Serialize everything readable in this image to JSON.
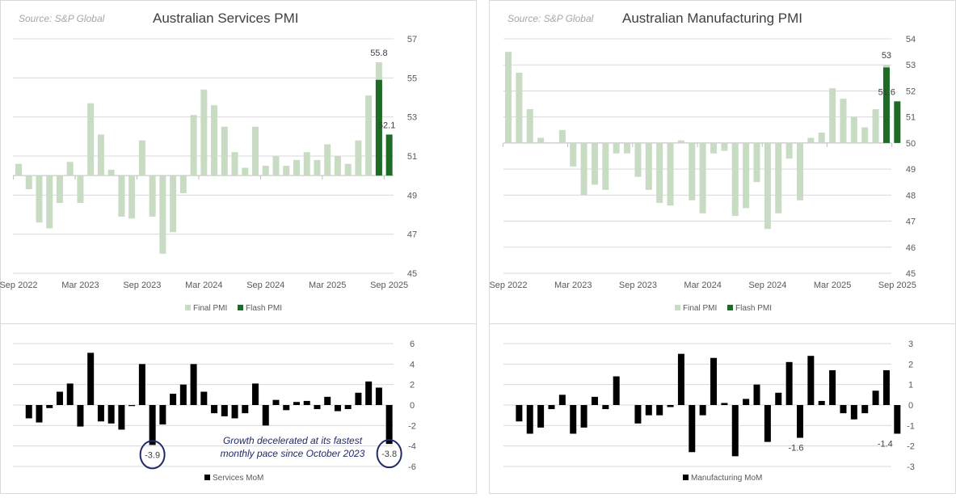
{
  "colors": {
    "final": "#c8dcc4",
    "flash": "#1e6b26",
    "mom": "#000000",
    "annotation": "#1f2a6b"
  },
  "chart_data": [
    {
      "id": "services-pmi",
      "type": "bar",
      "source": "Source: S&P Global",
      "title": "Australian Services PMI",
      "categories_ticks": [
        "Sep 2022",
        "Mar 2023",
        "Sep 2023",
        "Mar 2024",
        "Sep 2024",
        "Mar 2025",
        "Sep 2025"
      ],
      "months_start": "Sep 2022",
      "baseline": 50,
      "ylim": [
        45,
        57
      ],
      "yticks": [
        45,
        47,
        49,
        51,
        53,
        55,
        57
      ],
      "series": [
        {
          "name": "Final PMI",
          "values": [
            50.6,
            49.3,
            47.6,
            47.3,
            48.6,
            50.7,
            48.6,
            53.7,
            52.1,
            50.3,
            47.9,
            47.8,
            51.8,
            47.9,
            46.0,
            47.1,
            49.1,
            53.1,
            54.4,
            53.6,
            52.5,
            51.2,
            50.4,
            52.5,
            50.5,
            51.0,
            50.5,
            50.8,
            51.2,
            50.8,
            51.6,
            51.0,
            50.6,
            51.8,
            54.1,
            55.8,
            null
          ]
        },
        {
          "name": "Flash PMI",
          "values": [
            null,
            null,
            null,
            null,
            null,
            null,
            null,
            null,
            null,
            null,
            null,
            null,
            null,
            null,
            null,
            null,
            null,
            null,
            null,
            null,
            null,
            null,
            null,
            null,
            null,
            null,
            null,
            null,
            null,
            null,
            null,
            null,
            null,
            null,
            null,
            54.9,
            52.1
          ]
        }
      ],
      "data_labels": [
        {
          "index": 35,
          "series": "Final PMI",
          "text": "55.8"
        },
        {
          "index": 36,
          "series": "Flash PMI",
          "text": "52.1"
        }
      ],
      "legend": [
        "Final PMI",
        "Flash PMI"
      ],
      "legend_position": "bottom"
    },
    {
      "id": "services-mom",
      "type": "bar",
      "ylim": [
        -6,
        6
      ],
      "yticks": [
        -6,
        -4,
        -2,
        0,
        2,
        4,
        6
      ],
      "months_start": "Oct 2022",
      "series": [
        {
          "name": "Services MoM",
          "values": [
            -1.3,
            -1.7,
            -0.3,
            1.3,
            2.1,
            -2.1,
            5.1,
            -1.6,
            -1.8,
            -2.4,
            -0.1,
            4.0,
            -3.9,
            -1.9,
            1.1,
            2.0,
            4.0,
            1.3,
            -0.8,
            -1.1,
            -1.3,
            -0.8,
            2.1,
            -2.0,
            0.5,
            -0.5,
            0.3,
            0.4,
            -0.4,
            0.8,
            -0.6,
            -0.4,
            1.2,
            2.3,
            1.7,
            -3.8
          ]
        }
      ],
      "data_labels": [
        {
          "index": 12,
          "text": "-3.9",
          "circled": true
        },
        {
          "index": 35,
          "text": "-3.8",
          "circled": true
        }
      ],
      "annotation": [
        "Growth decelerated at its fastest",
        "monthly pace since October 2023"
      ],
      "legend": [
        "Services MoM"
      ],
      "legend_position": "bottom"
    },
    {
      "id": "manufacturing-pmi",
      "type": "bar",
      "source": "Source: S&P Global",
      "title": "Australian Manufacturing PMI",
      "categories_ticks": [
        "Sep 2022",
        "Mar 2023",
        "Sep 2023",
        "Mar 2024",
        "Sep 2024",
        "Mar 2025",
        "Sep 2025"
      ],
      "months_start": "Sep 2022",
      "baseline": 50,
      "ylim": [
        45,
        54
      ],
      "yticks": [
        45,
        46,
        47,
        48,
        49,
        50,
        51,
        52,
        53,
        54
      ],
      "series": [
        {
          "name": "Final PMI",
          "values": [
            53.5,
            52.7,
            51.3,
            50.2,
            50.0,
            50.5,
            49.1,
            48.0,
            48.4,
            48.2,
            49.6,
            49.6,
            48.7,
            48.2,
            47.7,
            47.6,
            50.1,
            47.8,
            47.3,
            49.6,
            49.7,
            47.2,
            47.5,
            48.5,
            46.7,
            47.3,
            49.4,
            47.8,
            50.2,
            50.4,
            52.1,
            51.7,
            51.0,
            50.6,
            51.3,
            53.0,
            null
          ]
        },
        {
          "name": "Flash PMI",
          "values": [
            null,
            null,
            null,
            null,
            null,
            null,
            null,
            null,
            null,
            null,
            null,
            null,
            null,
            null,
            null,
            null,
            null,
            null,
            null,
            null,
            null,
            null,
            null,
            null,
            null,
            null,
            null,
            null,
            null,
            null,
            null,
            null,
            null,
            null,
            null,
            52.9,
            51.6
          ]
        }
      ],
      "data_labels": [
        {
          "index": 35,
          "series": "Final PMI",
          "text": "53"
        },
        {
          "index": 36,
          "series": "Flash PMI",
          "text": "51.6"
        }
      ],
      "legend": [
        "Final PMI",
        "Flash PMI"
      ],
      "legend_position": "bottom"
    },
    {
      "id": "manufacturing-mom",
      "type": "bar",
      "ylim": [
        -3,
        3
      ],
      "yticks": [
        -3,
        -2,
        -1,
        0,
        1,
        2,
        3
      ],
      "months_start": "Oct 2022",
      "series": [
        {
          "name": "Manufacturing MoM",
          "values": [
            -0.8,
            -1.4,
            -1.1,
            -0.2,
            0.5,
            -1.4,
            -1.1,
            0.4,
            -0.2,
            1.4,
            0.0,
            -0.9,
            -0.5,
            -0.5,
            -0.1,
            2.5,
            -2.3,
            -0.5,
            2.3,
            0.1,
            -2.5,
            0.3,
            1.0,
            -1.8,
            0.6,
            2.1,
            -1.6,
            2.4,
            0.2,
            1.7,
            -0.4,
            -0.7,
            -0.4,
            0.7,
            1.7,
            -1.4
          ]
        }
      ],
      "data_labels": [
        {
          "index": 26,
          "text": "-1.6"
        },
        {
          "index": 35,
          "text": "-1.4"
        }
      ],
      "legend": [
        "Manufacturing MoM"
      ],
      "legend_position": "bottom"
    }
  ]
}
